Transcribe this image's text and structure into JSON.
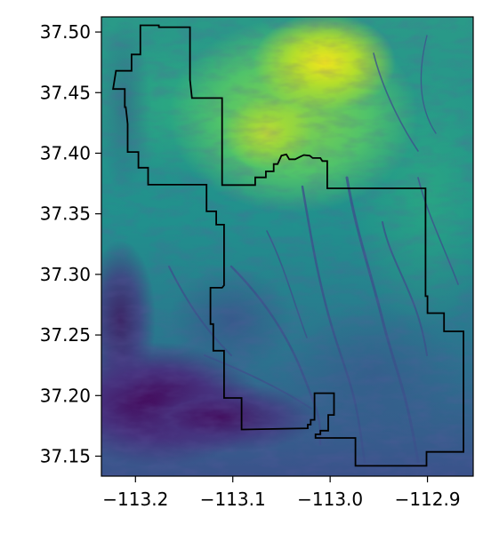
{
  "chart_data": {
    "type": "heatmap",
    "title": "",
    "xlabel": "",
    "ylabel": "",
    "xlim": [
      -113.235,
      -112.853
    ],
    "ylim": [
      37.1335,
      37.5125
    ],
    "colormap": "viridis",
    "x_ticks": [
      {
        "value": -113.2,
        "label": "−113.2"
      },
      {
        "value": -113.1,
        "label": "−113.1"
      },
      {
        "value": -113.0,
        "label": "−113.0"
      },
      {
        "value": -112.9,
        "label": "−112.9"
      }
    ],
    "y_ticks": [
      {
        "value": 37.5,
        "label": "37.50"
      },
      {
        "value": 37.45,
        "label": "37.45"
      },
      {
        "value": 37.4,
        "label": "37.40"
      },
      {
        "value": 37.35,
        "label": "37.35"
      },
      {
        "value": 37.3,
        "label": "37.30"
      },
      {
        "value": 37.25,
        "label": "37.25"
      },
      {
        "value": 37.2,
        "label": "37.20"
      },
      {
        "value": 37.15,
        "label": "37.15"
      }
    ],
    "boundary_color": "#000000",
    "boundary": [
      [
        -113.195,
        37.5055
      ],
      [
        -113.176,
        37.5055
      ],
      [
        -113.176,
        37.504
      ],
      [
        -113.144,
        37.504
      ],
      [
        -113.144,
        37.4605
      ],
      [
        -113.142,
        37.4455
      ],
      [
        -113.111,
        37.4455
      ],
      [
        -113.111,
        37.3737
      ],
      [
        -113.077,
        37.3737
      ],
      [
        -113.077,
        37.38
      ],
      [
        -113.066,
        37.38
      ],
      [
        -113.066,
        37.385
      ],
      [
        -113.058,
        37.385
      ],
      [
        -113.058,
        37.391
      ],
      [
        -113.054,
        37.391
      ],
      [
        -113.05,
        37.398
      ],
      [
        -113.045,
        37.399
      ],
      [
        -113.042,
        37.395
      ],
      [
        -113.036,
        37.395
      ],
      [
        -113.031,
        37.397
      ],
      [
        -113.027,
        37.3985
      ],
      [
        -113.021,
        37.398
      ],
      [
        -113.018,
        37.396
      ],
      [
        -113.01,
        37.396
      ],
      [
        -113.008,
        37.3935
      ],
      [
        -113.003,
        37.3935
      ],
      [
        -113.003,
        37.371
      ],
      [
        -112.902,
        37.371
      ],
      [
        -112.902,
        37.282
      ],
      [
        -112.9,
        37.282
      ],
      [
        -112.9,
        37.268
      ],
      [
        -112.883,
        37.268
      ],
      [
        -112.883,
        37.253
      ],
      [
        -112.863,
        37.253
      ],
      [
        -112.863,
        37.1535
      ],
      [
        -112.901,
        37.1535
      ],
      [
        -112.901,
        37.142
      ],
      [
        -112.974,
        37.142
      ],
      [
        -112.974,
        37.165
      ],
      [
        -113.015,
        37.165
      ],
      [
        -113.015,
        37.168
      ],
      [
        -113.01,
        37.168
      ],
      [
        -113.01,
        37.171
      ],
      [
        -113.002,
        37.171
      ],
      [
        -113.002,
        37.184
      ],
      [
        -112.996,
        37.184
      ],
      [
        -112.996,
        37.202
      ],
      [
        -113.016,
        37.202
      ],
      [
        -113.016,
        37.18
      ],
      [
        -113.02,
        37.18
      ],
      [
        -113.02,
        37.176
      ],
      [
        -113.023,
        37.176
      ],
      [
        -113.023,
        37.173
      ],
      [
        -113.089,
        37.172
      ],
      [
        -113.091,
        37.172
      ],
      [
        -113.091,
        37.198
      ],
      [
        -113.109,
        37.198
      ],
      [
        -113.109,
        37.237
      ],
      [
        -113.12,
        37.237
      ],
      [
        -113.12,
        37.259
      ],
      [
        -113.123,
        37.259
      ],
      [
        -113.123,
        37.289
      ],
      [
        -113.111,
        37.289
      ],
      [
        -113.109,
        37.291
      ],
      [
        -113.109,
        37.341
      ],
      [
        -113.117,
        37.341
      ],
      [
        -113.117,
        37.352
      ],
      [
        -113.127,
        37.352
      ],
      [
        -113.127,
        37.374
      ],
      [
        -113.187,
        37.374
      ],
      [
        -113.187,
        37.388
      ],
      [
        -113.197,
        37.388
      ],
      [
        -113.197,
        37.401
      ],
      [
        -113.208,
        37.401
      ],
      [
        -113.208,
        37.424
      ],
      [
        -113.209,
        37.431
      ],
      [
        -113.21,
        37.438
      ],
      [
        -113.211,
        37.438
      ],
      [
        -113.211,
        37.453
      ],
      [
        -113.223,
        37.453
      ],
      [
        -113.22,
        37.468
      ],
      [
        -113.204,
        37.468
      ],
      [
        -113.204,
        37.4815
      ],
      [
        -113.195,
        37.4815
      ],
      [
        -113.195,
        37.5055
      ]
    ]
  }
}
